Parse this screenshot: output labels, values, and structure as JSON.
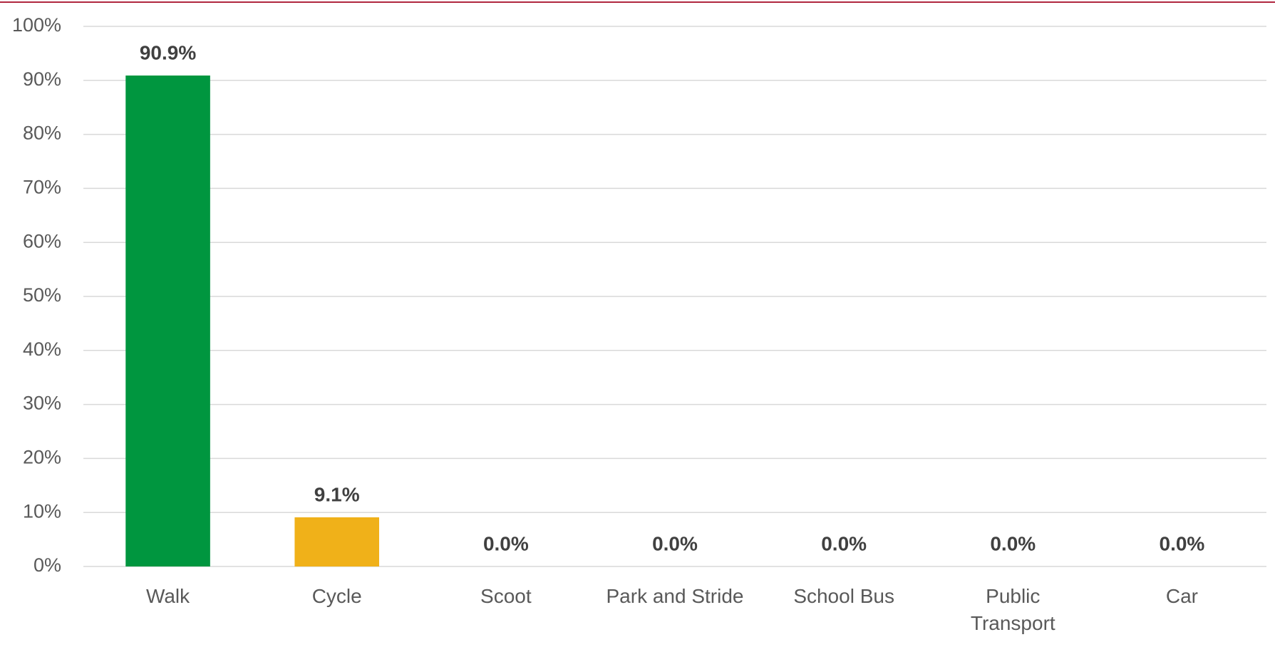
{
  "chart_data": {
    "type": "bar",
    "categories": [
      "Walk",
      "Cycle",
      "Scoot",
      "Park and Stride",
      "School Bus",
      "Public Transport",
      "Car"
    ],
    "values": [
      90.9,
      9.1,
      0,
      0,
      0,
      0,
      0
    ],
    "value_labels": [
      "90.9%",
      "9.1%",
      "0.0%",
      "0.0%",
      "0.0%",
      "0.0%",
      "0.0%"
    ],
    "colors": [
      "#00963f",
      "#f0b119",
      "#4472c4",
      "#4472c4",
      "#4472c4",
      "#4472c4",
      "#4472c4"
    ],
    "ylim": [
      0,
      100
    ],
    "yticks": [
      {
        "value": 0,
        "label": "0%"
      },
      {
        "value": 10,
        "label": "10%"
      },
      {
        "value": 20,
        "label": "20%"
      },
      {
        "value": 30,
        "label": "30%"
      },
      {
        "value": 40,
        "label": "40%"
      },
      {
        "value": 50,
        "label": "50%"
      },
      {
        "value": 60,
        "label": "60%"
      },
      {
        "value": 70,
        "label": "70%"
      },
      {
        "value": 80,
        "label": "80%"
      },
      {
        "value": 90,
        "label": "90%"
      },
      {
        "value": 100,
        "label": "100%"
      }
    ],
    "grid": true
  }
}
